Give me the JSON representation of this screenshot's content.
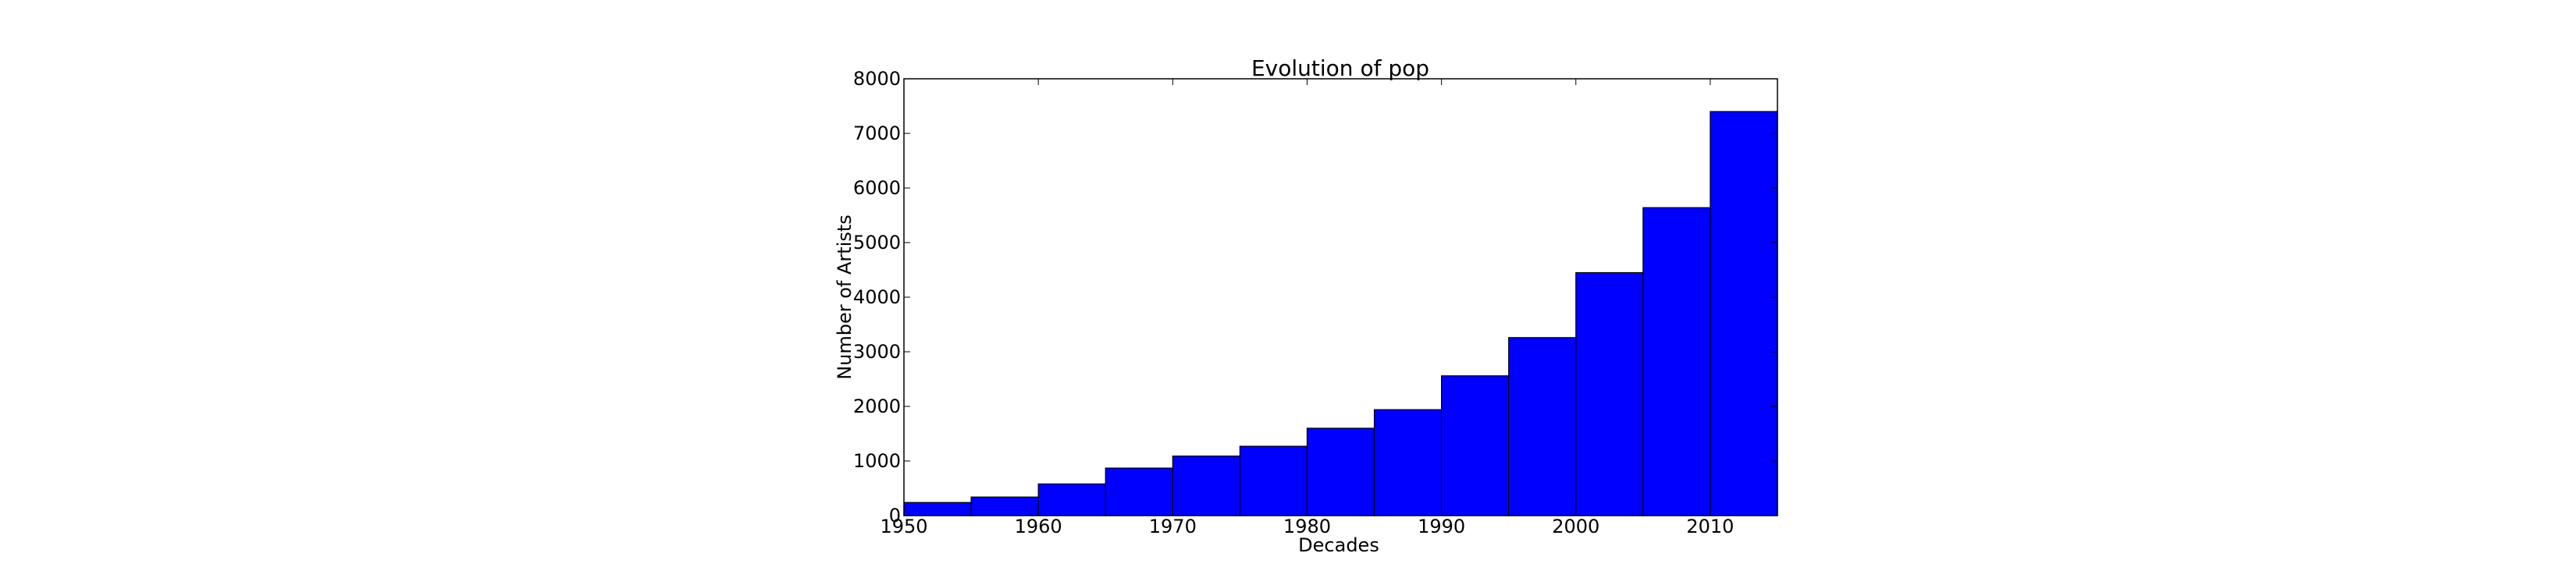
{
  "chart_data": {
    "type": "bar",
    "title": "Evolution of pop",
    "xlabel": "Decades",
    "ylabel": "Number of Artists",
    "bin_width": 5,
    "x": [
      1950,
      1955,
      1960,
      1965,
      1970,
      1975,
      1980,
      1985,
      1990,
      1995,
      2000,
      2005,
      2010
    ],
    "values": [
      240,
      340,
      580,
      870,
      1090,
      1270,
      1600,
      1940,
      2560,
      3260,
      4450,
      5640,
      7400
    ],
    "xlim": [
      1950,
      2015
    ],
    "ylim": [
      0,
      8000
    ],
    "xticks": [
      1950,
      1960,
      1970,
      1980,
      1990,
      2000,
      2010
    ],
    "yticks": [
      0,
      1000,
      2000,
      3000,
      4000,
      5000,
      6000,
      7000,
      8000
    ],
    "grid": false,
    "bar_color": "#0000ff",
    "edge_color": "#000000"
  }
}
